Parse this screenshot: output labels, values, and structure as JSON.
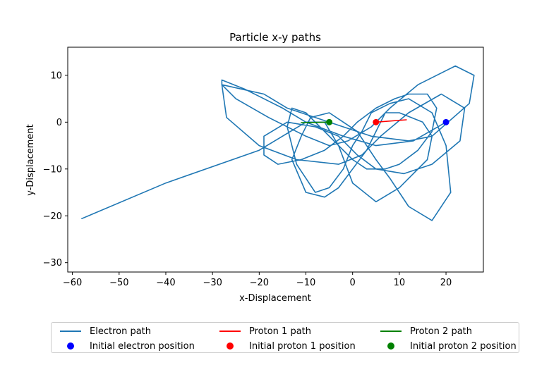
{
  "chart_data": {
    "type": "line",
    "title": "Particle x-y paths",
    "xlabel": "x-Displacement",
    "ylabel": "y-Displacement",
    "xlim": [
      -61,
      28
    ],
    "ylim": [
      -32,
      16
    ],
    "xticks": [
      -60,
      -50,
      -40,
      -30,
      -20,
      -10,
      0,
      10,
      20
    ],
    "yticks": [
      -30,
      -20,
      -10,
      0,
      10
    ],
    "grid": false,
    "legend_position": "bottom",
    "series": [
      {
        "name": "Electron path",
        "kind": "line",
        "color": "#1f77b4",
        "x": [
          20,
          13,
          5,
          -2,
          -10,
          -15,
          -23,
          -28,
          -28,
          -25,
          -18,
          -10,
          -5,
          -1,
          4,
          8,
          14,
          22,
          26,
          25,
          17,
          12,
          4,
          -2,
          -8,
          -14,
          -19,
          -28,
          -27,
          -20,
          -12,
          -3,
          2,
          6,
          12,
          19,
          24,
          23,
          17,
          11,
          5,
          1,
          -3,
          -8,
          -14,
          -19,
          -19,
          -16,
          -11,
          -6,
          -2,
          1,
          5,
          9,
          12,
          16,
          18,
          17,
          14,
          10,
          7,
          3,
          0,
          -4,
          -7,
          -10,
          -13,
          -14,
          -12,
          -8,
          -5,
          -2,
          0,
          2,
          4,
          8,
          12,
          17,
          20,
          21,
          17,
          12,
          8,
          5,
          3,
          1,
          -2,
          -5,
          -9,
          -11,
          -13,
          -10,
          -6,
          -3,
          0,
          3,
          5,
          7,
          10,
          15,
          17,
          16,
          10,
          5,
          0,
          -3,
          -6,
          -10,
          -20,
          -40,
          -58
        ],
        "y": [
          0,
          -4,
          -5,
          -3,
          0,
          3,
          7,
          9,
          8,
          5,
          1,
          -3,
          -5,
          -4,
          -1,
          3,
          8,
          12,
          10,
          4,
          -3,
          -4,
          -3,
          -1,
          1,
          3,
          6,
          8,
          1,
          -5,
          -8,
          -9,
          -7,
          -3,
          2,
          6,
          3,
          -4,
          -9,
          -11,
          -10,
          -7,
          -3,
          -1,
          0,
          -3,
          -7,
          -9,
          -8,
          -6,
          -3,
          0,
          3,
          5,
          6,
          6,
          3,
          -2,
          -6,
          -9,
          -10,
          -10,
          -8,
          -4,
          -1,
          2,
          3,
          -1,
          -9,
          -15,
          -14,
          -10,
          -5,
          -2,
          2,
          4,
          5,
          2,
          -5,
          -15,
          -21,
          -18,
          -12,
          -8,
          -5,
          -2,
          0,
          2,
          1,
          -3,
          -8,
          -15,
          -16,
          -14,
          -10,
          -6,
          -2,
          2,
          2,
          0,
          -3,
          -8,
          -14,
          -17,
          -13,
          -5,
          0,
          0,
          -6,
          -13,
          -20.6
        ]
      },
      {
        "name": "Proton 1 path",
        "kind": "line",
        "color": "#ff0000",
        "x": [
          5,
          11.5
        ],
        "y": [
          0,
          0.5
        ]
      },
      {
        "name": "Proton 2 path",
        "kind": "line",
        "color": "#008000",
        "x": [
          -5,
          -11
        ],
        "y": [
          0,
          -0.1
        ]
      },
      {
        "name": "Initial electron position",
        "kind": "point",
        "color": "#0000ff",
        "x": [
          20
        ],
        "y": [
          0
        ]
      },
      {
        "name": "Initial proton 1 position",
        "kind": "point",
        "color": "#ff0000",
        "x": [
          5
        ],
        "y": [
          0
        ]
      },
      {
        "name": "Initial proton 2 position",
        "kind": "point",
        "color": "#008000",
        "x": [
          -5
        ],
        "y": [
          0
        ]
      }
    ]
  }
}
